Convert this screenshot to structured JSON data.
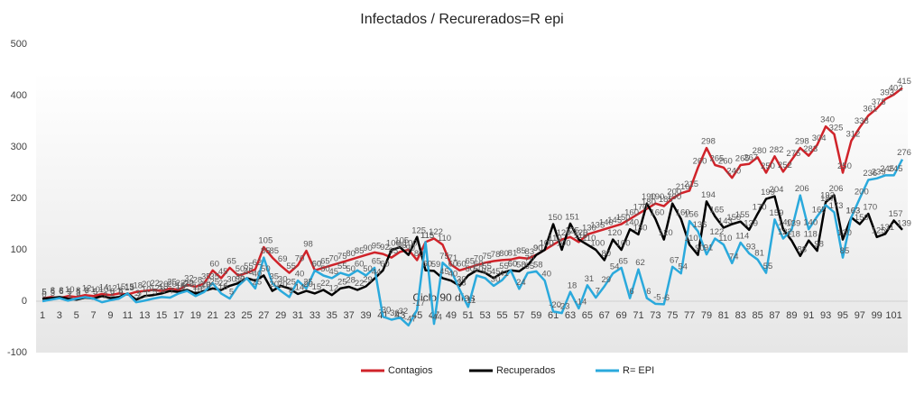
{
  "chart_data": {
    "type": "line",
    "title": "Infectados  / Recurerados=R  epi",
    "annotation": "Ciclo 90 días",
    "categories": [
      1,
      null,
      3,
      null,
      5,
      null,
      7,
      null,
      9,
      null,
      11,
      null,
      13,
      null,
      15,
      null,
      17,
      null,
      19,
      null,
      21,
      null,
      23,
      null,
      25,
      null,
      27,
      null,
      29,
      null,
      31,
      null,
      33,
      null,
      35,
      null,
      37,
      null,
      39,
      null,
      41,
      null,
      43,
      null,
      45,
      null,
      47,
      null,
      49,
      null,
      51,
      null,
      53,
      null,
      55,
      null,
      57,
      null,
      59,
      null,
      61,
      null,
      63,
      null,
      65,
      null,
      67,
      null,
      69,
      null,
      71,
      null,
      73,
      null,
      75,
      null,
      77,
      null,
      79,
      null,
      81,
      null,
      83,
      null,
      85,
      null,
      87,
      null,
      89,
      null,
      91,
      null,
      93,
      null,
      95,
      null,
      97,
      null,
      99,
      null,
      101,
      null
    ],
    "ylim": [
      -100,
      500
    ],
    "yticks": [
      -100,
      0,
      100,
      200,
      300,
      400,
      500
    ],
    "legend": "bottom",
    "series": [
      {
        "name": "Contagios",
        "color": "#d0232a",
        "values": [
          5,
          8,
          6,
          10,
          8,
          12,
          10,
          14,
          12,
          15,
          13,
          18,
          20,
          22,
          20,
          25,
          22,
          32,
          28,
          35,
          60,
          45,
          65,
          50,
          55,
          62,
          105,
          85,
          69,
          55,
          70,
          98,
          60,
          65,
          70,
          75,
          80,
          85,
          90,
          95,
          92,
          85,
          96,
          100,
          80,
          115,
          122,
          110,
          71,
          60,
          65,
          70,
          75,
          78,
          80,
          81,
          85,
          83,
          90,
          100,
          110,
          120,
          125,
          115,
          130,
          135,
          140,
          145,
          150,
          160,
          170,
          180,
          190,
          185,
          200,
          210,
          215,
          260,
          298,
          265,
          260,
          240,
          265,
          267,
          280,
          250,
          282,
          252,
          275,
          298,
          283,
          304,
          340,
          325,
          250,
          312,
          338,
          361,
          375,
          393,
          402,
          415
        ]
      },
      {
        "name": "Recuperados",
        "color": "#000000",
        "values": [
          5,
          6,
          8,
          5,
          3,
          7,
          5,
          10,
          6,
          8,
          15,
          3,
          10,
          12,
          15,
          20,
          18,
          22,
          15,
          20,
          25,
          22,
          30,
          35,
          45,
          40,
          50,
          20,
          30,
          25,
          14,
          20,
          15,
          22,
          12,
          25,
          28,
          22,
          29,
          44,
          60,
          100,
          105,
          90,
          125,
          60,
          59,
          45,
          40,
          30,
          50,
          60,
          55,
          45,
          55,
          60,
          58,
          70,
          90,
          100,
          150,
          100,
          151,
          120,
          110,
          100,
          80,
          120,
          100,
          140,
          130,
          190,
          160,
          120,
          190,
          160,
          110,
          90,
          194,
          165,
          143,
          150,
          155,
          139,
          170,
          199,
          204,
          140,
          118,
          88,
          118,
          98,
          193,
          206,
          120,
          163,
          150,
          170,
          125,
          131,
          157,
          139
        ]
      },
      {
        "name": "R= EPI",
        "color": "#2aa9dc",
        "values": [
          0,
          3,
          6,
          1,
          5,
          8,
          5,
          -2,
          2,
          5,
          15,
          -2,
          1,
          5,
          8,
          7,
          15,
          20,
          10,
          18,
          35,
          15,
          5,
          30,
          45,
          25,
          85,
          35,
          20,
          8,
          40,
          25,
          60,
          50,
          45,
          55,
          50,
          60,
          50,
          65,
          -30,
          -36,
          -32,
          -47,
          -17,
          115,
          -44,
          75,
          60,
          23,
          -11,
          50,
          45,
          30,
          41,
          60,
          24,
          55,
          58,
          40,
          -20,
          -23,
          18,
          -14,
          31,
          7,
          29,
          54,
          65,
          6,
          62,
          6,
          -5,
          -6,
          67,
          54,
          156,
          136,
          91,
          122,
          110,
          74,
          114,
          93,
          81,
          55,
          159,
          122,
          139,
          206,
          140,
          165,
          187,
          173,
          85,
          163,
          200,
          236,
          239,
          245,
          245,
          276
        ]
      }
    ]
  }
}
